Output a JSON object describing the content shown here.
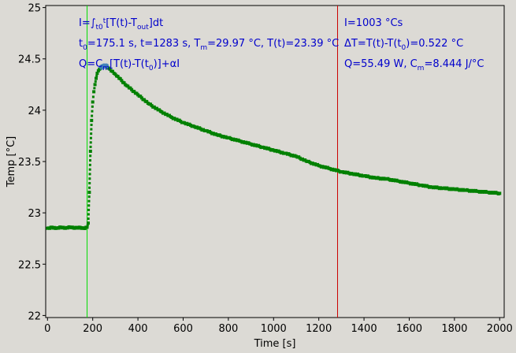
{
  "chart_data": {
    "type": "scatter",
    "xlabel": "Time [s]",
    "ylabel": "Temp [°C]",
    "xlim": [
      -8,
      2020
    ],
    "ylim": [
      21.98,
      25.02
    ],
    "xticks": [
      0,
      200,
      400,
      600,
      800,
      1000,
      1200,
      1400,
      1600,
      1800,
      2000
    ],
    "yticks": [
      22,
      22.5,
      23,
      23.5,
      24,
      24.5,
      25
    ],
    "ytick_labels": [
      "22",
      "22.5",
      "23",
      "23.5",
      "24",
      "24.5",
      "25"
    ],
    "grid": false,
    "series": [
      {
        "color": "#008000",
        "marker": "square",
        "points": [
          [
            0,
            22.85
          ],
          [
            20,
            22.86
          ],
          [
            40,
            22.85
          ],
          [
            60,
            22.86
          ],
          [
            80,
            22.85
          ],
          [
            100,
            22.86
          ],
          [
            120,
            22.85
          ],
          [
            140,
            22.86
          ],
          [
            160,
            22.85
          ],
          [
            175,
            22.86
          ],
          [
            180,
            22.9
          ],
          [
            185,
            23.2
          ],
          [
            190,
            23.6
          ],
          [
            195,
            23.9
          ],
          [
            200,
            24.08
          ],
          [
            205,
            24.18
          ],
          [
            210,
            24.25
          ],
          [
            215,
            24.31
          ],
          [
            220,
            24.36
          ],
          [
            230,
            24.4
          ],
          [
            240,
            24.42
          ],
          [
            250,
            24.43
          ],
          [
            260,
            24.43
          ],
          [
            270,
            24.41
          ],
          [
            300,
            24.35
          ],
          [
            350,
            24.24
          ],
          [
            400,
            24.15
          ],
          [
            450,
            24.06
          ],
          [
            500,
            23.99
          ],
          [
            550,
            23.93
          ],
          [
            600,
            23.88
          ],
          [
            650,
            23.84
          ],
          [
            700,
            23.8
          ],
          [
            750,
            23.76
          ],
          [
            800,
            23.73
          ],
          [
            850,
            23.7
          ],
          [
            900,
            23.67
          ],
          [
            950,
            23.64
          ],
          [
            1000,
            23.61
          ],
          [
            1050,
            23.58
          ],
          [
            1100,
            23.55
          ],
          [
            1150,
            23.5
          ],
          [
            1200,
            23.46
          ],
          [
            1250,
            23.43
          ],
          [
            1300,
            23.4
          ],
          [
            1350,
            23.38
          ],
          [
            1400,
            23.36
          ],
          [
            1450,
            23.34
          ],
          [
            1500,
            23.33
          ],
          [
            1550,
            23.31
          ],
          [
            1600,
            23.29
          ],
          [
            1650,
            23.27
          ],
          [
            1700,
            23.25
          ],
          [
            1750,
            23.24
          ],
          [
            1800,
            23.23
          ],
          [
            1850,
            23.22
          ],
          [
            1900,
            23.21
          ],
          [
            1950,
            23.2
          ],
          [
            2000,
            23.19
          ]
        ]
      }
    ],
    "highlight_points": {
      "color": "#3f7fbf",
      "x": [
        240,
        250,
        260
      ]
    },
    "vlines": [
      {
        "x": 175.1,
        "color": "#00dd00"
      },
      {
        "x": 1283,
        "color": "#cc0000"
      }
    ]
  },
  "annotations": {
    "left": {
      "line1": {
        "a": "I=∫",
        "b": "t0",
        "c": "t",
        "d": "[T(t)-T",
        "e": "out",
        "f": "]dt"
      },
      "line2": {
        "a": "t",
        "b": "0",
        "c": "=175.1 s,   t=1283 s,   T",
        "d": "m",
        "e": "=29.97 °C,  T(t)=23.39 °C"
      },
      "line3": {
        "a": "Q=C",
        "b": "m",
        "c": "[T(t)-T(t",
        "d": "0",
        "e": ")]+αI"
      }
    },
    "right": {
      "line1": "I=1003 °Cs",
      "line2": {
        "a": "ΔT=T(t)-T(t",
        "b": "0",
        "c": ")=0.522 °C"
      },
      "line3": {
        "a": "Q=55.49 W,   C",
        "b": "m",
        "c": "=8.444 J/°C"
      }
    }
  }
}
